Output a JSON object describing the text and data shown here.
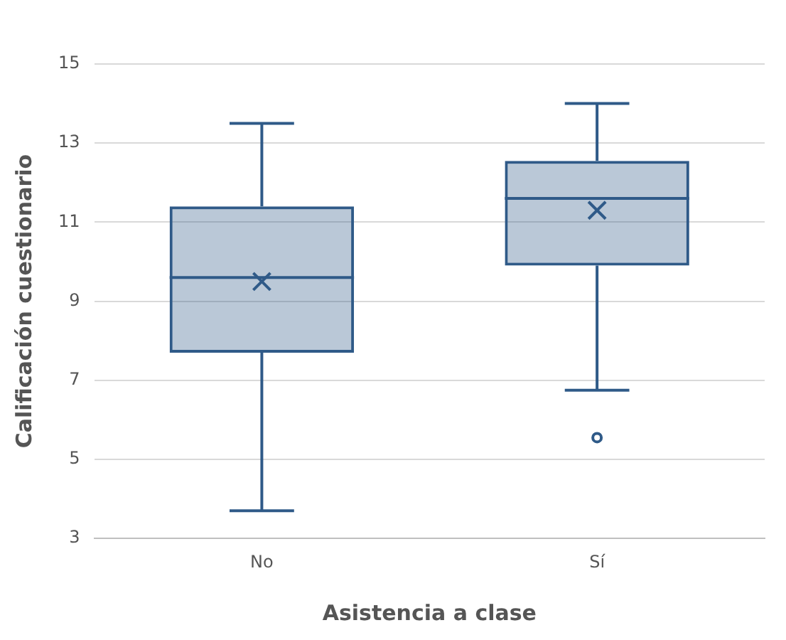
{
  "chart_data": {
    "type": "box",
    "xlabel": "Asistencia a clase",
    "ylabel": "Calificación cuestionario",
    "categories": [
      "No",
      "Sí"
    ],
    "boxes": [
      {
        "low": 3.7,
        "q1": 7.7,
        "median": 9.6,
        "q3": 11.4,
        "high": 13.5,
        "mean": 9.5
      },
      {
        "low": 6.75,
        "q1": 9.9,
        "median": 11.6,
        "q3": 12.55,
        "high": 14,
        "mean": 11.3,
        "outliers": [
          5.55
        ]
      }
    ],
    "color": "#2f5a88",
    "ylim": [
      3,
      15
    ],
    "yticks": [
      3,
      5,
      7,
      9,
      11,
      13,
      15
    ],
    "grid": "y",
    "legend": false
  }
}
